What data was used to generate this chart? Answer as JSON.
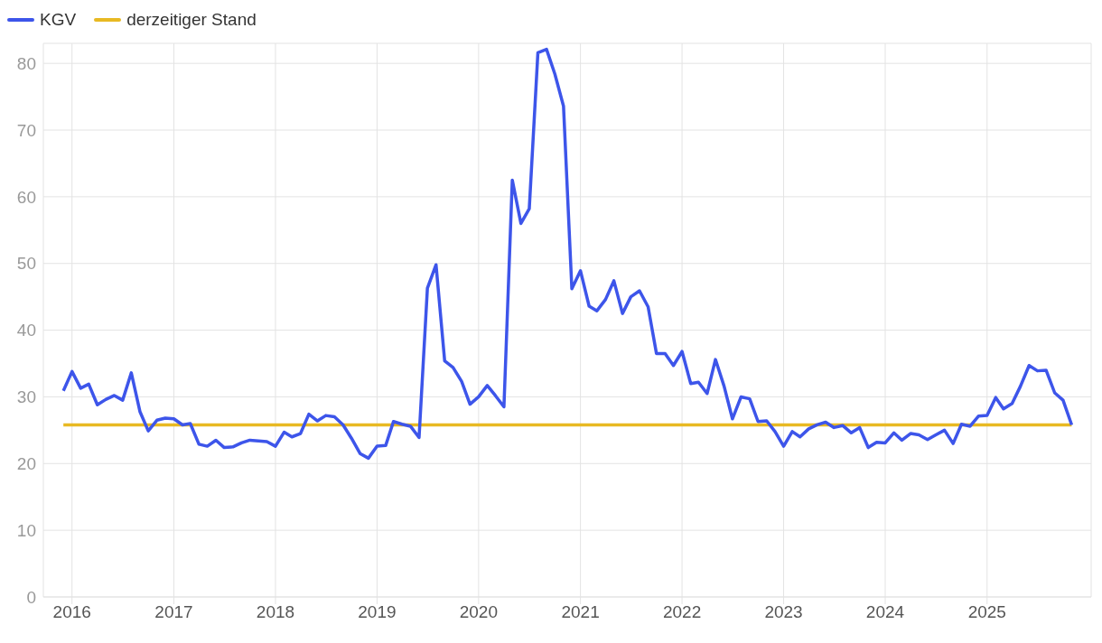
{
  "chart_data": {
    "type": "line",
    "x": [
      "2015-12",
      "2016-01",
      "2016-02",
      "2016-03",
      "2016-04",
      "2016-05",
      "2016-06",
      "2016-07",
      "2016-08",
      "2016-09",
      "2016-10",
      "2016-11",
      "2016-12",
      "2017-01",
      "2017-02",
      "2017-03",
      "2017-04",
      "2017-05",
      "2017-06",
      "2017-07",
      "2017-08",
      "2017-09",
      "2017-10",
      "2017-11",
      "2017-12",
      "2018-01",
      "2018-02",
      "2018-03",
      "2018-04",
      "2018-05",
      "2018-06",
      "2018-07",
      "2018-08",
      "2018-09",
      "2018-10",
      "2018-11",
      "2018-12",
      "2019-01",
      "2019-02",
      "2019-03",
      "2019-04",
      "2019-05",
      "2019-06",
      "2019-07",
      "2019-08",
      "2019-09",
      "2019-10",
      "2019-11",
      "2019-12",
      "2020-01",
      "2020-02",
      "2020-03",
      "2020-04",
      "2020-05",
      "2020-06",
      "2020-07",
      "2020-08",
      "2020-09",
      "2020-10",
      "2020-11",
      "2020-12",
      "2021-01",
      "2021-02",
      "2021-03",
      "2021-04",
      "2021-05",
      "2021-06",
      "2021-07",
      "2021-08",
      "2021-09",
      "2021-10",
      "2021-11",
      "2021-12",
      "2022-01",
      "2022-02",
      "2022-03",
      "2022-04",
      "2022-05",
      "2022-06",
      "2022-07",
      "2022-08",
      "2022-09",
      "2022-10",
      "2022-11",
      "2022-12",
      "2023-01",
      "2023-02",
      "2023-03",
      "2023-04",
      "2023-05",
      "2023-06",
      "2023-07",
      "2023-08",
      "2023-09",
      "2023-10",
      "2023-11",
      "2023-12",
      "2024-01",
      "2024-02",
      "2024-03",
      "2024-04",
      "2024-05",
      "2024-06",
      "2024-07",
      "2024-08",
      "2024-09",
      "2024-10",
      "2024-11",
      "2024-12",
      "2025-01",
      "2025-02",
      "2025-03",
      "2025-04",
      "2025-05",
      "2025-06",
      "2025-07",
      "2025-08",
      "2025-09",
      "2025-10",
      "2025-11"
    ],
    "series": [
      {
        "name": "KGV",
        "color": "#3d55ea",
        "values": [
          30.9,
          33.8,
          31.3,
          31.9,
          28.8,
          29.6,
          30.2,
          29.5,
          33.6,
          27.8,
          24.9,
          26.5,
          26.8,
          26.7,
          25.8,
          26.0,
          22.9,
          22.6,
          23.5,
          22.4,
          22.5,
          23.1,
          23.5,
          23.4,
          23.3,
          22.6,
          24.7,
          24.0,
          24.5,
          27.4,
          26.4,
          27.2,
          27.0,
          25.8,
          23.8,
          21.5,
          20.8,
          22.6,
          22.7,
          26.3,
          25.9,
          25.6,
          23.9,
          46.3,
          49.8,
          35.4,
          34.4,
          32.3,
          28.9,
          30.0,
          31.7,
          30.2,
          28.5,
          62.5,
          56.0,
          58.2,
          81.6,
          82.1,
          78.4,
          73.6,
          46.2,
          48.9,
          43.6,
          42.9,
          44.6,
          47.4,
          42.5,
          45.0,
          45.9,
          43.5,
          36.5,
          36.5,
          34.7,
          36.8,
          32.0,
          32.2,
          30.5,
          35.6,
          31.6,
          26.7,
          30.0,
          29.7,
          26.3,
          26.4,
          24.8,
          22.6,
          24.8,
          24.0,
          25.2,
          25.8,
          26.2,
          25.4,
          25.7,
          24.6,
          25.4,
          22.4,
          23.2,
          23.1,
          24.6,
          23.5,
          24.5,
          24.3,
          23.6,
          24.3,
          25.0,
          23.0,
          25.9,
          25.6,
          27.1,
          27.2,
          29.9,
          28.2,
          29.0,
          31.6,
          34.7,
          33.9,
          34.0,
          30.6,
          29.5,
          25.8
        ]
      }
    ],
    "ref_lines": [
      {
        "axis": "y",
        "value": 25.8,
        "label": "derzeitiger Stand",
        "color": "#e8b923"
      }
    ],
    "xlim": [
      "2015-09-20",
      "2026-01-10"
    ],
    "xticks": [
      {
        "value": "2016",
        "label": "2016"
      },
      {
        "value": "2017",
        "label": "2017"
      },
      {
        "value": "2018",
        "label": "2018"
      },
      {
        "value": "2019",
        "label": "2019"
      },
      {
        "value": "2020",
        "label": "2020"
      },
      {
        "value": "2021",
        "label": "2021"
      },
      {
        "value": "2022",
        "label": "2022"
      },
      {
        "value": "2023",
        "label": "2023"
      },
      {
        "value": "2024",
        "label": "2024"
      },
      {
        "value": "2025",
        "label": "2025"
      }
    ],
    "ylim": [
      0,
      83
    ],
    "yticks": [
      0,
      10,
      20,
      30,
      40,
      50,
      60,
      70,
      80
    ],
    "grid": true,
    "legend": "top left",
    "marker": "none",
    "line_style": "solid"
  }
}
